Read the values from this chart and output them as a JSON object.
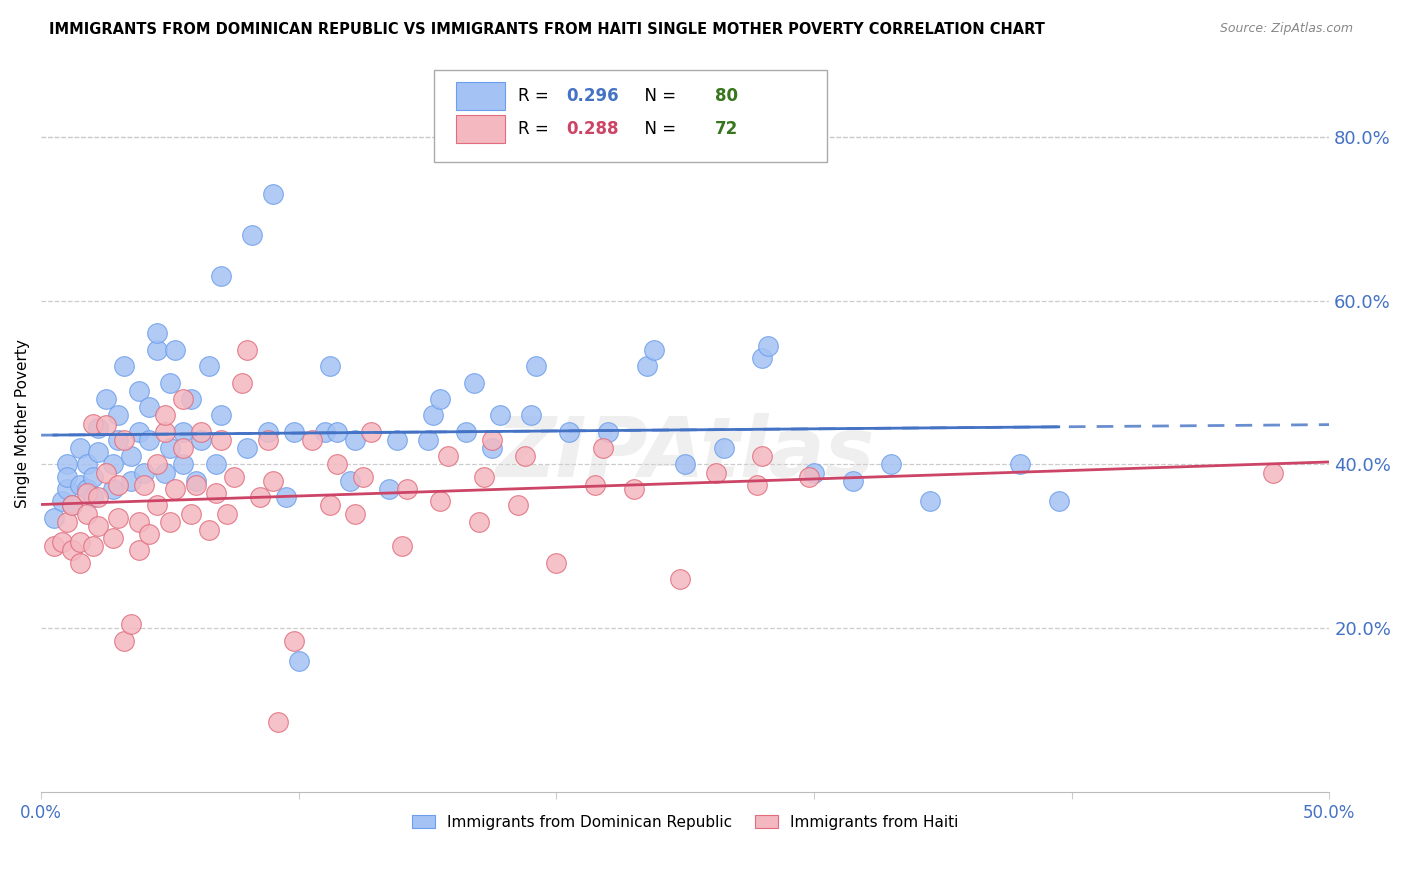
{
  "title": "IMMIGRANTS FROM DOMINICAN REPUBLIC VS IMMIGRANTS FROM HAITI SINGLE MOTHER POVERTY CORRELATION CHART",
  "source": "Source: ZipAtlas.com",
  "ylabel": "Single Mother Poverty",
  "right_ytick_vals": [
    0.2,
    0.4,
    0.6,
    0.8
  ],
  "right_ytick_labels": [
    "20.0%",
    "40.0%",
    "60.0%",
    "80.0%"
  ],
  "xlim": [
    0.0,
    0.5
  ],
  "ylim": [
    0.0,
    0.9
  ],
  "blue_label": "Immigrants from Dominican Republic",
  "pink_label": "Immigrants from Haiti",
  "blue_R": 0.296,
  "blue_N": 80,
  "pink_R": 0.288,
  "pink_N": 72,
  "blue_color": "#a4c2f4",
  "pink_color": "#f4b8c1",
  "blue_edge_color": "#6d9eeb",
  "pink_edge_color": "#e06c7c",
  "blue_line_color": "#4472c4",
  "pink_line_color": "#cc4466",
  "right_label_color": "#4472c4",
  "green_color": "#38761d",
  "grid_color": "#cccccc",
  "background_color": "#ffffff",
  "blue_points": [
    [
      0.005,
      0.335
    ],
    [
      0.008,
      0.355
    ],
    [
      0.01,
      0.37
    ],
    [
      0.01,
      0.4
    ],
    [
      0.01,
      0.385
    ],
    [
      0.012,
      0.35
    ],
    [
      0.015,
      0.375
    ],
    [
      0.015,
      0.42
    ],
    [
      0.018,
      0.4
    ],
    [
      0.018,
      0.37
    ],
    [
      0.02,
      0.36
    ],
    [
      0.02,
      0.385
    ],
    [
      0.022,
      0.415
    ],
    [
      0.022,
      0.445
    ],
    [
      0.025,
      0.48
    ],
    [
      0.028,
      0.37
    ],
    [
      0.028,
      0.4
    ],
    [
      0.03,
      0.43
    ],
    [
      0.03,
      0.46
    ],
    [
      0.032,
      0.52
    ],
    [
      0.035,
      0.38
    ],
    [
      0.035,
      0.41
    ],
    [
      0.038,
      0.44
    ],
    [
      0.038,
      0.49
    ],
    [
      0.04,
      0.39
    ],
    [
      0.042,
      0.43
    ],
    [
      0.042,
      0.47
    ],
    [
      0.045,
      0.54
    ],
    [
      0.045,
      0.56
    ],
    [
      0.048,
      0.39
    ],
    [
      0.05,
      0.42
    ],
    [
      0.05,
      0.5
    ],
    [
      0.052,
      0.54
    ],
    [
      0.055,
      0.4
    ],
    [
      0.055,
      0.44
    ],
    [
      0.058,
      0.48
    ],
    [
      0.06,
      0.38
    ],
    [
      0.062,
      0.43
    ],
    [
      0.065,
      0.52
    ],
    [
      0.068,
      0.4
    ],
    [
      0.07,
      0.46
    ],
    [
      0.07,
      0.63
    ],
    [
      0.08,
      0.42
    ],
    [
      0.082,
      0.68
    ],
    [
      0.088,
      0.44
    ],
    [
      0.09,
      0.73
    ],
    [
      0.095,
      0.36
    ],
    [
      0.098,
      0.44
    ],
    [
      0.1,
      0.16
    ],
    [
      0.11,
      0.44
    ],
    [
      0.112,
      0.52
    ],
    [
      0.115,
      0.44
    ],
    [
      0.12,
      0.38
    ],
    [
      0.122,
      0.43
    ],
    [
      0.135,
      0.37
    ],
    [
      0.138,
      0.43
    ],
    [
      0.15,
      0.43
    ],
    [
      0.152,
      0.46
    ],
    [
      0.155,
      0.48
    ],
    [
      0.165,
      0.44
    ],
    [
      0.168,
      0.5
    ],
    [
      0.175,
      0.42
    ],
    [
      0.178,
      0.46
    ],
    [
      0.19,
      0.46
    ],
    [
      0.192,
      0.52
    ],
    [
      0.205,
      0.44
    ],
    [
      0.22,
      0.44
    ],
    [
      0.235,
      0.52
    ],
    [
      0.238,
      0.54
    ],
    [
      0.25,
      0.4
    ],
    [
      0.265,
      0.42
    ],
    [
      0.28,
      0.53
    ],
    [
      0.282,
      0.545
    ],
    [
      0.3,
      0.39
    ],
    [
      0.315,
      0.38
    ],
    [
      0.33,
      0.4
    ],
    [
      0.345,
      0.355
    ],
    [
      0.38,
      0.4
    ],
    [
      0.395,
      0.355
    ]
  ],
  "pink_points": [
    [
      0.005,
      0.3
    ],
    [
      0.008,
      0.305
    ],
    [
      0.01,
      0.33
    ],
    [
      0.012,
      0.35
    ],
    [
      0.012,
      0.295
    ],
    [
      0.015,
      0.28
    ],
    [
      0.015,
      0.305
    ],
    [
      0.018,
      0.34
    ],
    [
      0.018,
      0.365
    ],
    [
      0.02,
      0.45
    ],
    [
      0.02,
      0.3
    ],
    [
      0.022,
      0.325
    ],
    [
      0.022,
      0.36
    ],
    [
      0.025,
      0.39
    ],
    [
      0.025,
      0.448
    ],
    [
      0.028,
      0.31
    ],
    [
      0.03,
      0.335
    ],
    [
      0.03,
      0.375
    ],
    [
      0.032,
      0.43
    ],
    [
      0.032,
      0.185
    ],
    [
      0.035,
      0.205
    ],
    [
      0.038,
      0.295
    ],
    [
      0.038,
      0.33
    ],
    [
      0.04,
      0.375
    ],
    [
      0.042,
      0.315
    ],
    [
      0.045,
      0.35
    ],
    [
      0.045,
      0.4
    ],
    [
      0.048,
      0.44
    ],
    [
      0.048,
      0.46
    ],
    [
      0.05,
      0.33
    ],
    [
      0.052,
      0.37
    ],
    [
      0.055,
      0.42
    ],
    [
      0.055,
      0.48
    ],
    [
      0.058,
      0.34
    ],
    [
      0.06,
      0.375
    ],
    [
      0.062,
      0.44
    ],
    [
      0.065,
      0.32
    ],
    [
      0.068,
      0.365
    ],
    [
      0.07,
      0.43
    ],
    [
      0.072,
      0.34
    ],
    [
      0.075,
      0.385
    ],
    [
      0.078,
      0.5
    ],
    [
      0.08,
      0.54
    ],
    [
      0.085,
      0.36
    ],
    [
      0.088,
      0.43
    ],
    [
      0.09,
      0.38
    ],
    [
      0.092,
      0.085
    ],
    [
      0.098,
      0.185
    ],
    [
      0.105,
      0.43
    ],
    [
      0.112,
      0.35
    ],
    [
      0.115,
      0.4
    ],
    [
      0.122,
      0.34
    ],
    [
      0.125,
      0.385
    ],
    [
      0.128,
      0.44
    ],
    [
      0.14,
      0.3
    ],
    [
      0.142,
      0.37
    ],
    [
      0.155,
      0.355
    ],
    [
      0.158,
      0.41
    ],
    [
      0.17,
      0.33
    ],
    [
      0.172,
      0.385
    ],
    [
      0.175,
      0.43
    ],
    [
      0.185,
      0.35
    ],
    [
      0.188,
      0.41
    ],
    [
      0.2,
      0.28
    ],
    [
      0.215,
      0.375
    ],
    [
      0.218,
      0.42
    ],
    [
      0.23,
      0.37
    ],
    [
      0.248,
      0.26
    ],
    [
      0.262,
      0.39
    ],
    [
      0.278,
      0.375
    ],
    [
      0.28,
      0.41
    ],
    [
      0.298,
      0.385
    ],
    [
      0.478,
      0.39
    ]
  ]
}
